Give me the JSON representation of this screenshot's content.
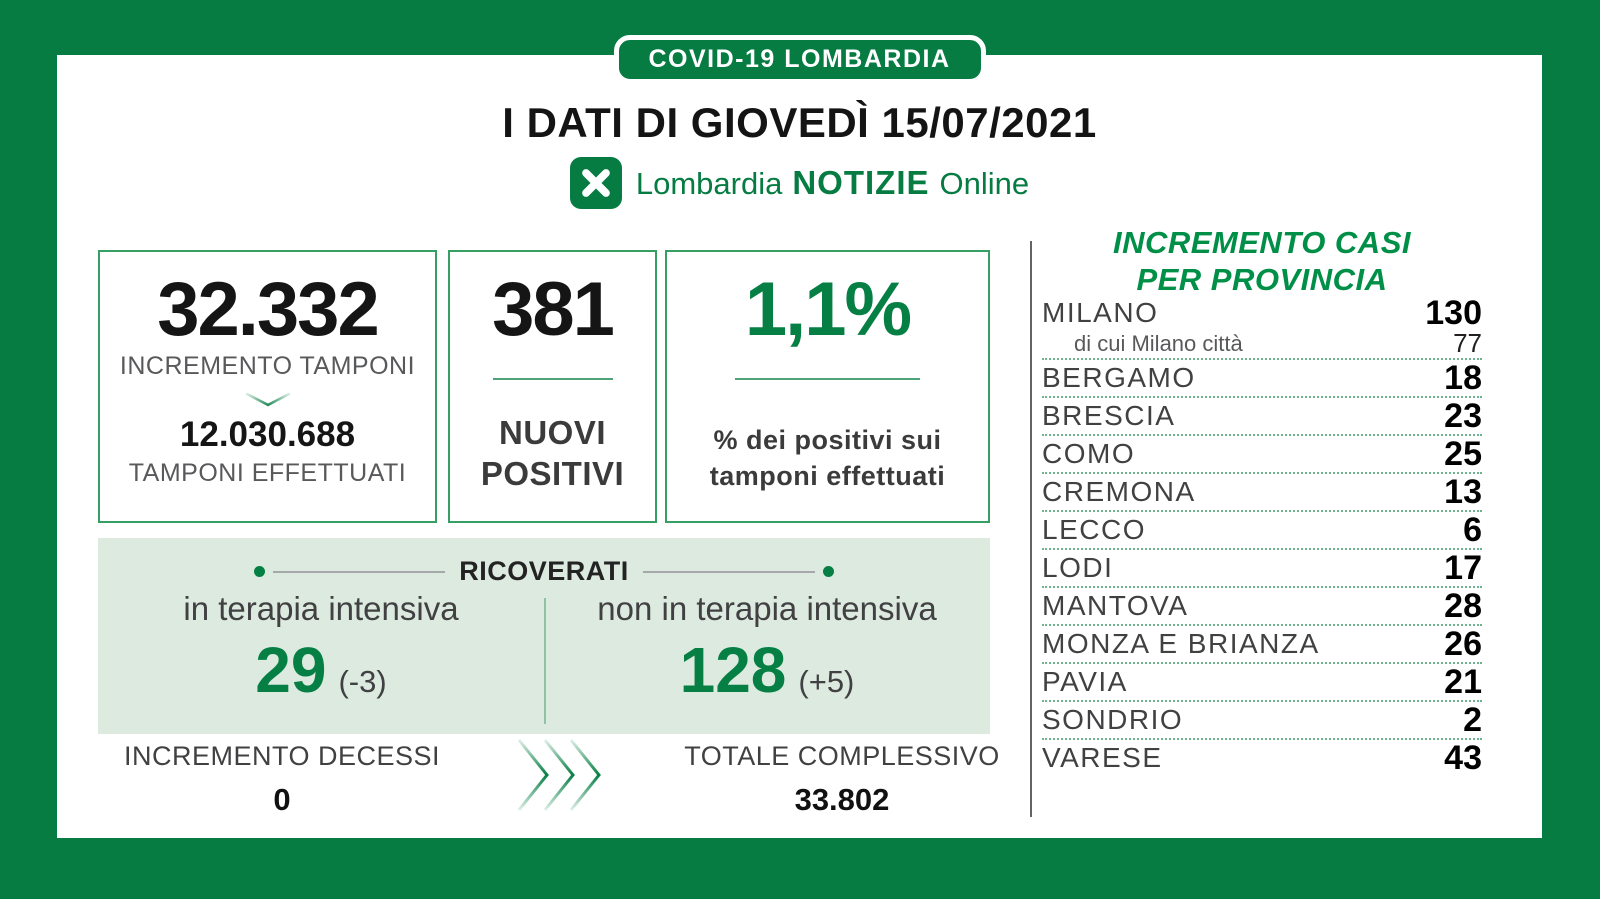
{
  "badge": {
    "label": "COVID-19 LOMBARDIA"
  },
  "title": "I DATI DI GIOVEDÌ 15/07/2021",
  "logo": {
    "region": "Lombardia",
    "brand": "NOTIZIE",
    "suffix": "Online",
    "icon": "rosa-camuna-icon"
  },
  "cards": {
    "tamponi": {
      "value": "32.332",
      "label": "INCREMENTO TAMPONI",
      "arrow_icon": "chevron-down-icon",
      "total_value": "12.030.688",
      "total_label": "TAMPONI EFFETTUATI"
    },
    "positivi": {
      "value": "381",
      "label": "NUOVI POSITIVI"
    },
    "percent": {
      "value": "1,1%",
      "label": "% dei positivi sui tamponi effettuati"
    }
  },
  "ricoverati": {
    "title": "RICOVERATI",
    "intensive": {
      "label": "in terapia intensiva",
      "value": "29",
      "delta": "(-3)"
    },
    "non_intensive": {
      "label": "non in terapia intensiva",
      "value": "128",
      "delta": "(+5)"
    }
  },
  "decessi": {
    "label": "INCREMENTO DECESSI",
    "value": "0"
  },
  "totale": {
    "label": "TOTALE COMPLESSIVO",
    "value": "33.802"
  },
  "province": {
    "title_line1": "INCREMENTO CASI",
    "title_line2": "PER PROVINCIA",
    "rows": [
      {
        "name": "MILANO",
        "value": "130",
        "sub": {
          "name": "di cui Milano città",
          "value": "77"
        }
      },
      {
        "name": "BERGAMO",
        "value": "18"
      },
      {
        "name": "BRESCIA",
        "value": "23"
      },
      {
        "name": "COMO",
        "value": "25"
      },
      {
        "name": "CREMONA",
        "value": "13"
      },
      {
        "name": "LECCO",
        "value": "6"
      },
      {
        "name": "LODI",
        "value": "17"
      },
      {
        "name": "MANTOVA",
        "value": "28"
      },
      {
        "name": "MONZA E BRIANZA",
        "value": "26"
      },
      {
        "name": "PAVIA",
        "value": "21"
      },
      {
        "name": "SONDRIO",
        "value": "2"
      },
      {
        "name": "VARESE",
        "value": "43"
      }
    ]
  },
  "colors": {
    "green": "#067C43",
    "green-accent": "#067F44",
    "green-title": "#008F47",
    "panel": "#DCEADF",
    "dotted": "#6FB48E",
    "gray-text": "#58595B",
    "dark-text": "#414042",
    "line-gray": "#A6A8AB",
    "divider": "#4EA378"
  },
  "chart_data": {
    "type": "table",
    "title": "INCREMENTO CASI PER PROVINCIA",
    "columns": [
      "provincia",
      "incremento_casi"
    ],
    "rows": [
      [
        "MILANO",
        130
      ],
      [
        "di cui Milano città",
        77
      ],
      [
        "BERGAMO",
        18
      ],
      [
        "BRESCIA",
        23
      ],
      [
        "COMO",
        25
      ],
      [
        "CREMONA",
        13
      ],
      [
        "LECCO",
        6
      ],
      [
        "LODI",
        17
      ],
      [
        "MANTOVA",
        28
      ],
      [
        "MONZA E BRIANZA",
        26
      ],
      [
        "PAVIA",
        21
      ],
      [
        "SONDRIO",
        2
      ],
      [
        "VARESE",
        43
      ]
    ],
    "summary": {
      "data": "15/07/2021",
      "incremento_tamponi": 32332,
      "tamponi_effettuati": 12030688,
      "nuovi_positivi": 381,
      "percentuale_positivi": "1,1%",
      "ricoverati_terapia_intensiva": 29,
      "ricoverati_terapia_intensiva_delta": -3,
      "ricoverati_non_terapia_intensiva": 128,
      "ricoverati_non_terapia_intensiva_delta": 5,
      "incremento_decessi": 0,
      "totale_complessivo_decessi": 33802
    }
  }
}
